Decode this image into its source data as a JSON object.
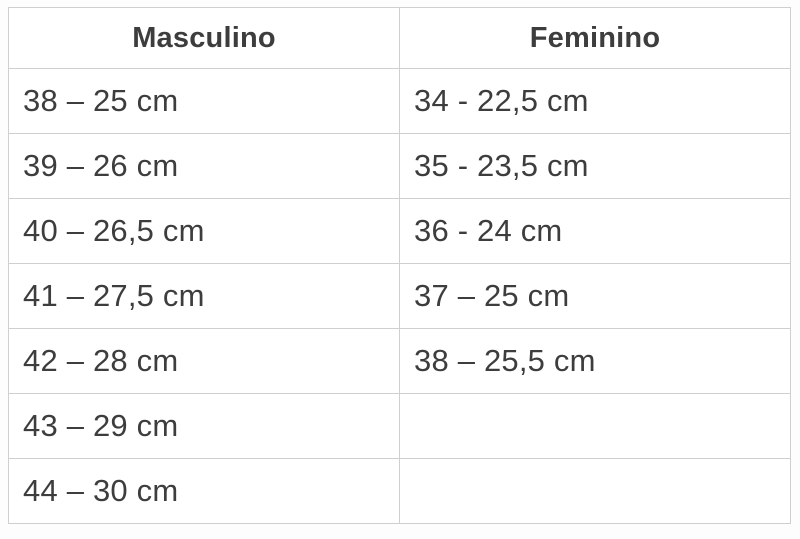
{
  "size_table": {
    "headers": [
      "Masculino",
      "Feminino"
    ],
    "rows": [
      [
        "38 – 25 cm",
        "34 - 22,5 cm"
      ],
      [
        "39 – 26 cm",
        "35 - 23,5 cm"
      ],
      [
        "40 – 26,5 cm",
        "36 - 24 cm"
      ],
      [
        "41 – 27,5 cm",
        "37 – 25 cm"
      ],
      [
        "42 – 28 cm",
        "38 – 25,5 cm"
      ],
      [
        "43 – 29 cm",
        ""
      ],
      [
        "44 – 30 cm",
        ""
      ]
    ]
  },
  "colors": {
    "text": "#3d3d3d",
    "border": "#cfcfcf",
    "background": "#ffffff"
  }
}
